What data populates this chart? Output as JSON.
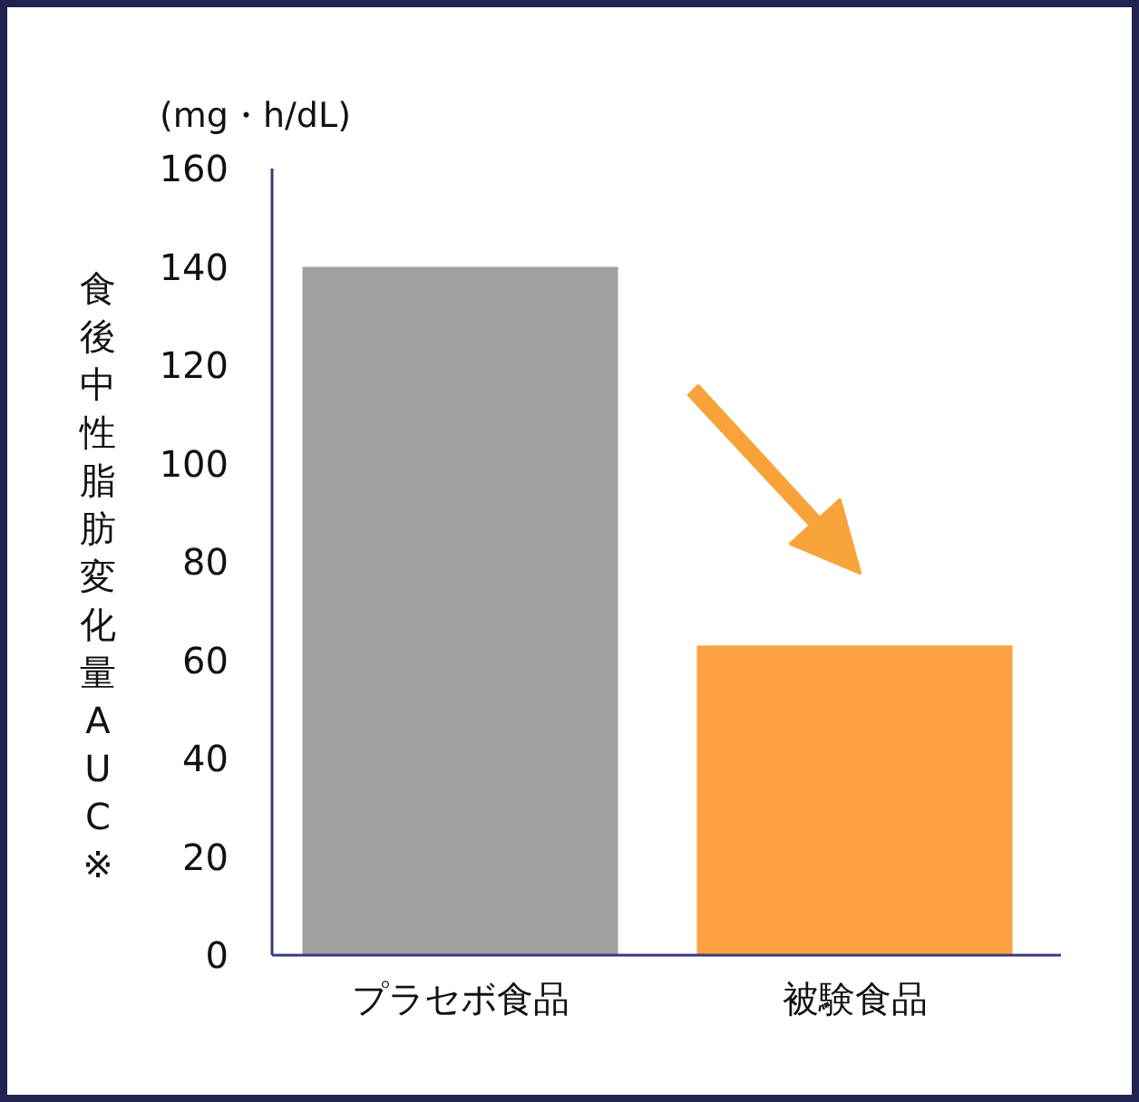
{
  "chart_data": {
    "type": "bar",
    "ylabel": "食後中性脂肪変化量AUC※",
    "annotations": [
      "(mg・h/dL)"
    ],
    "categories": [
      "プラセボ食品",
      "被験食品"
    ],
    "values": [
      140,
      63
    ],
    "colors": [
      "#a0a0a0",
      "#fba141"
    ],
    "ylim": [
      0,
      160
    ],
    "yticks": [
      0,
      20,
      40,
      60,
      80,
      100,
      120,
      140,
      160
    ]
  }
}
